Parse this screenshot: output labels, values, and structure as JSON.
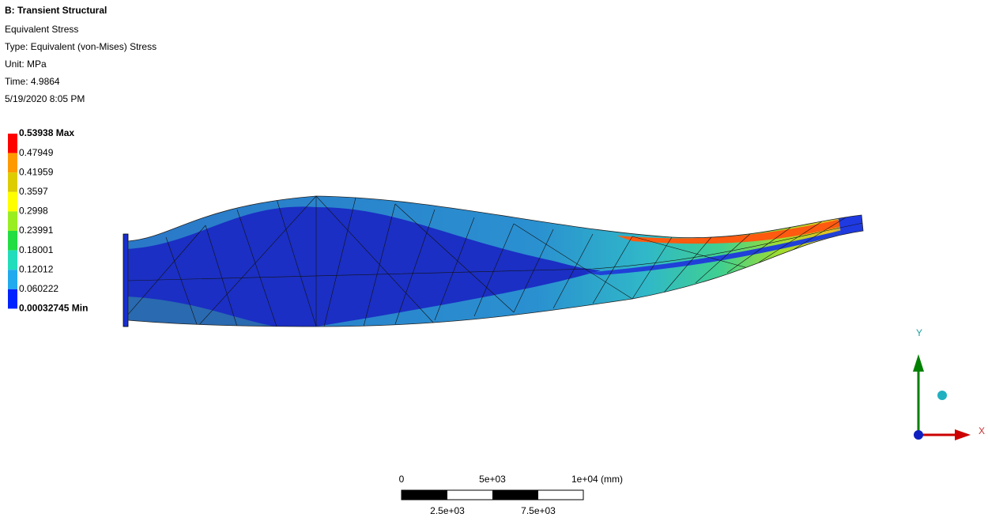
{
  "header": {
    "title": "B: Transient Structural",
    "result": "Equivalent Stress",
    "type": "Type: Equivalent (von-Mises) Stress",
    "unit": "Unit: MPa",
    "time": "Time: 4.9864",
    "date": "5/19/2020 8:05 PM"
  },
  "legend": {
    "labels": [
      "0.53938 Max",
      "0.47949",
      "0.41959",
      "0.3597",
      "0.2998",
      "0.23991",
      "0.18001",
      "0.12012",
      "0.060222",
      "0.00032745 Min"
    ],
    "colors": [
      "#ff0000",
      "#ff9900",
      "#ddcc00",
      "#ffff00",
      "#99ee22",
      "#22dd44",
      "#22ddbb",
      "#22aaee",
      "#0022ff"
    ]
  },
  "scale_bar": {
    "top_labels": [
      "0",
      "5e+03",
      "1e+04 (mm)"
    ],
    "bottom_labels": [
      "2.5e+03",
      "7.5e+03"
    ]
  },
  "triad": {
    "y_label": "Y",
    "x_label": "X"
  }
}
